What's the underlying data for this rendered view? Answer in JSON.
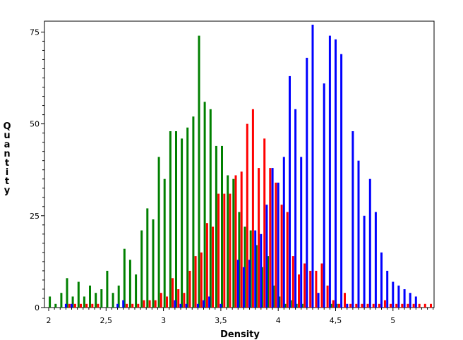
{
  "chart_data": {
    "type": "bar",
    "title": "",
    "xlabel": "Density",
    "ylabel": "Quantity",
    "xlim": [
      2.0,
      5.37
    ],
    "ylim": [
      0,
      77
    ],
    "grid": false,
    "legend": "none",
    "x_ticks": [
      {
        "value": 2.0,
        "label": "2"
      },
      {
        "value": 2.5,
        "label": "2,5"
      },
      {
        "value": 3.0,
        "label": "3"
      },
      {
        "value": 3.5,
        "label": "3,5"
      },
      {
        "value": 4.0,
        "label": "4"
      },
      {
        "value": 4.5,
        "label": "4,5"
      },
      {
        "value": 5.0,
        "label": "5"
      }
    ],
    "y_ticks": [
      {
        "value": 0,
        "label": "0"
      },
      {
        "value": 25,
        "label": "25"
      },
      {
        "value": 50,
        "label": "50"
      },
      {
        "value": 75,
        "label": "75"
      }
    ],
    "series": [
      {
        "color": "#008000",
        "points": [
          [
            2.01,
            3
          ],
          [
            2.06,
            1
          ],
          [
            2.11,
            4
          ],
          [
            2.16,
            8
          ],
          [
            2.21,
            3
          ],
          [
            2.26,
            7
          ],
          [
            2.31,
            3
          ],
          [
            2.36,
            6
          ],
          [
            2.41,
            4
          ],
          [
            2.46,
            5
          ],
          [
            2.51,
            10
          ],
          [
            2.56,
            4
          ],
          [
            2.61,
            6
          ],
          [
            2.66,
            16
          ],
          [
            2.71,
            13
          ],
          [
            2.76,
            9
          ],
          [
            2.81,
            21
          ],
          [
            2.86,
            27
          ],
          [
            2.91,
            24
          ],
          [
            2.96,
            41
          ],
          [
            3.01,
            35
          ],
          [
            3.06,
            48
          ],
          [
            3.11,
            48
          ],
          [
            3.16,
            46
          ],
          [
            3.21,
            49
          ],
          [
            3.26,
            52
          ],
          [
            3.31,
            74
          ],
          [
            3.36,
            56
          ],
          [
            3.41,
            54
          ],
          [
            3.46,
            44
          ],
          [
            3.51,
            44
          ],
          [
            3.56,
            36
          ],
          [
            3.61,
            35
          ],
          [
            3.66,
            26
          ],
          [
            3.71,
            22
          ],
          [
            3.76,
            21
          ],
          [
            3.81,
            17
          ],
          [
            3.86,
            11
          ],
          [
            3.91,
            14
          ],
          [
            3.96,
            6
          ],
          [
            4.01,
            3
          ],
          [
            4.06,
            1
          ],
          [
            4.11,
            2
          ],
          [
            4.16,
            1
          ],
          [
            4.21,
            1
          ],
          [
            4.46,
            1
          ],
          [
            4.51,
            1
          ]
        ]
      },
      {
        "color": "#ff0000",
        "points": [
          [
            2.18,
            1
          ],
          [
            2.23,
            1
          ],
          [
            2.28,
            1
          ],
          [
            2.33,
            1
          ],
          [
            2.38,
            1
          ],
          [
            2.43,
            1
          ],
          [
            2.68,
            1
          ],
          [
            2.73,
            1
          ],
          [
            2.78,
            1
          ],
          [
            2.83,
            2
          ],
          [
            2.88,
            2
          ],
          [
            2.93,
            2
          ],
          [
            2.98,
            4
          ],
          [
            3.03,
            3
          ],
          [
            3.08,
            8
          ],
          [
            3.13,
            5
          ],
          [
            3.18,
            4
          ],
          [
            3.23,
            10
          ],
          [
            3.28,
            14
          ],
          [
            3.33,
            15
          ],
          [
            3.38,
            23
          ],
          [
            3.43,
            22
          ],
          [
            3.48,
            31
          ],
          [
            3.53,
            31
          ],
          [
            3.58,
            31
          ],
          [
            3.63,
            36
          ],
          [
            3.68,
            37
          ],
          [
            3.73,
            50
          ],
          [
            3.78,
            54
          ],
          [
            3.83,
            38
          ],
          [
            3.88,
            46
          ],
          [
            3.93,
            38
          ],
          [
            3.98,
            34
          ],
          [
            4.03,
            28
          ],
          [
            4.08,
            26
          ],
          [
            4.13,
            14
          ],
          [
            4.18,
            9
          ],
          [
            4.23,
            12
          ],
          [
            4.28,
            10
          ],
          [
            4.33,
            10
          ],
          [
            4.38,
            12
          ],
          [
            4.43,
            6
          ],
          [
            4.48,
            2
          ],
          [
            4.53,
            1
          ],
          [
            4.58,
            4
          ],
          [
            4.63,
            1
          ],
          [
            4.68,
            1
          ],
          [
            4.73,
            1
          ],
          [
            4.78,
            1
          ],
          [
            4.83,
            1
          ],
          [
            4.88,
            1
          ],
          [
            4.93,
            2
          ],
          [
            4.98,
            1
          ],
          [
            5.03,
            1
          ],
          [
            5.08,
            1
          ],
          [
            5.13,
            1
          ],
          [
            5.18,
            1
          ],
          [
            5.23,
            1
          ],
          [
            5.28,
            1
          ],
          [
            5.33,
            1
          ]
        ]
      },
      {
        "color": "#0000ff",
        "points": [
          [
            2.15,
            1
          ],
          [
            2.2,
            1
          ],
          [
            2.6,
            1
          ],
          [
            2.65,
            2
          ],
          [
            3.1,
            2
          ],
          [
            3.15,
            1
          ],
          [
            3.2,
            1
          ],
          [
            3.3,
            1
          ],
          [
            3.35,
            2
          ],
          [
            3.4,
            3
          ],
          [
            3.5,
            1
          ],
          [
            3.65,
            13
          ],
          [
            3.7,
            11
          ],
          [
            3.75,
            13
          ],
          [
            3.8,
            21
          ],
          [
            3.85,
            20
          ],
          [
            3.9,
            28
          ],
          [
            3.95,
            38
          ],
          [
            4.0,
            34
          ],
          [
            4.05,
            41
          ],
          [
            4.1,
            63
          ],
          [
            4.15,
            54
          ],
          [
            4.2,
            41
          ],
          [
            4.25,
            68
          ],
          [
            4.3,
            77
          ],
          [
            4.35,
            4
          ],
          [
            4.4,
            61
          ],
          [
            4.45,
            74
          ],
          [
            4.5,
            73
          ],
          [
            4.55,
            69
          ],
          [
            4.6,
            1
          ],
          [
            4.65,
            48
          ],
          [
            4.7,
            40
          ],
          [
            4.75,
            25
          ],
          [
            4.8,
            35
          ],
          [
            4.85,
            26
          ],
          [
            4.9,
            15
          ],
          [
            4.95,
            10
          ],
          [
            5.0,
            7
          ],
          [
            5.05,
            6
          ],
          [
            5.1,
            5
          ],
          [
            5.15,
            4
          ],
          [
            5.2,
            3
          ]
        ]
      }
    ]
  }
}
